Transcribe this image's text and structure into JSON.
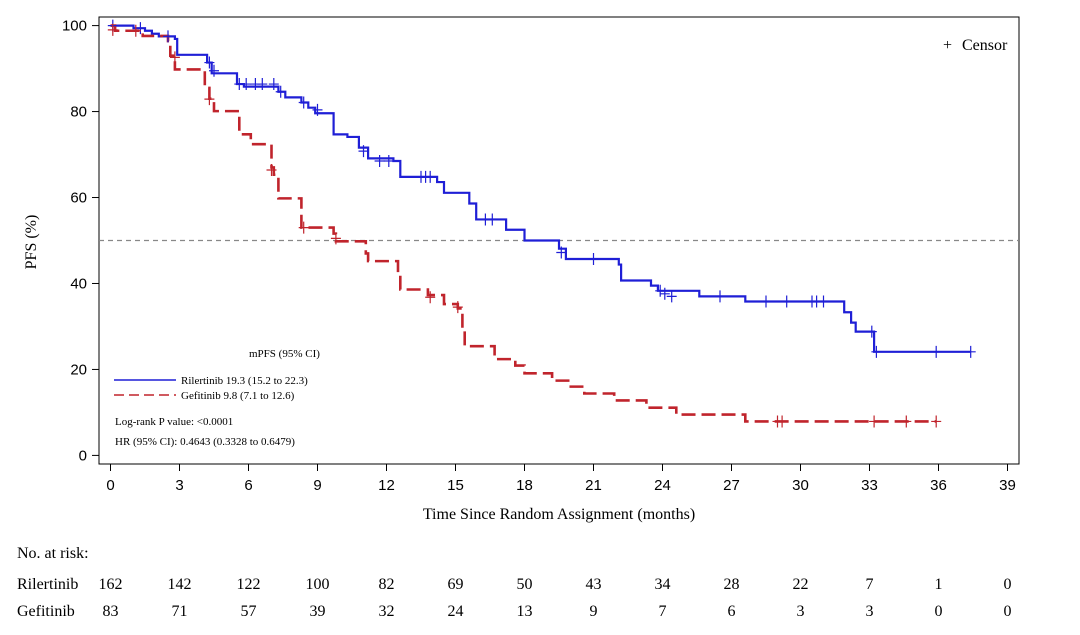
{
  "chart_data": {
    "type": "line",
    "subtype": "kaplan-meier",
    "xlabel": "Time Since Random Assignment (months)",
    "ylabel": "PFS (%)",
    "xlim": [
      -0.5,
      39.5
    ],
    "ylim": [
      -2,
      102
    ],
    "x_ticks": [
      0,
      3,
      6,
      9,
      12,
      15,
      18,
      21,
      24,
      27,
      30,
      33,
      36,
      39
    ],
    "y_ticks": [
      0,
      20,
      40,
      60,
      80,
      100
    ],
    "reference_line_y": 50,
    "grid": false,
    "legend": {
      "placement": "top-right",
      "censor_label": "Censor",
      "censor_symbol": "+"
    },
    "series": [
      {
        "name": "Rilertinib",
        "color": "#1f1fd6",
        "line_style": "solid",
        "steps": [
          [
            0,
            100
          ],
          [
            1.0,
            99.4
          ],
          [
            1.5,
            98.8
          ],
          [
            1.8,
            98.1
          ],
          [
            2.1,
            97.5
          ],
          [
            2.8,
            96.9
          ],
          [
            2.9,
            93.2
          ],
          [
            4.2,
            91.4
          ],
          [
            4.4,
            88.9
          ],
          [
            5.5,
            86.4
          ],
          [
            5.8,
            85.8
          ],
          [
            7.3,
            84.6
          ],
          [
            7.6,
            83.3
          ],
          [
            8.3,
            82.1
          ],
          [
            8.6,
            80.9
          ],
          [
            8.9,
            79.6
          ],
          [
            9.7,
            74.7
          ],
          [
            10.3,
            74.1
          ],
          [
            10.8,
            71.6
          ],
          [
            11.2,
            69.1
          ],
          [
            12.3,
            68.5
          ],
          [
            12.6,
            64.8
          ],
          [
            14.2,
            63.6
          ],
          [
            14.5,
            61.1
          ],
          [
            15.6,
            58.6
          ],
          [
            15.9,
            54.9
          ],
          [
            17.2,
            52.5
          ],
          [
            18.0,
            50.0
          ],
          [
            19.5,
            48.1
          ],
          [
            19.8,
            45.7
          ],
          [
            22.1,
            44.4
          ],
          [
            22.2,
            40.7
          ],
          [
            23.5,
            39.5
          ],
          [
            23.8,
            38.3
          ],
          [
            25.6,
            37.0
          ],
          [
            27.6,
            35.8
          ],
          [
            31.9,
            33.3
          ],
          [
            32.2,
            30.9
          ],
          [
            32.4,
            28.8
          ],
          [
            33.2,
            24.1
          ],
          [
            37.4,
            24.1
          ]
        ],
        "censors": [
          [
            0.1,
            100
          ],
          [
            1.3,
            99.4
          ],
          [
            2.5,
            97.5
          ],
          [
            4.3,
            91.4
          ],
          [
            4.5,
            89.5
          ],
          [
            5.6,
            86.4
          ],
          [
            5.9,
            86.4
          ],
          [
            6.3,
            86.4
          ],
          [
            6.6,
            86.4
          ],
          [
            7.1,
            86.4
          ],
          [
            7.4,
            84.6
          ],
          [
            8.4,
            82.1
          ],
          [
            9.0,
            80.4
          ],
          [
            11.0,
            70.8
          ],
          [
            11.7,
            68.5
          ],
          [
            12.1,
            68.5
          ],
          [
            13.5,
            64.8
          ],
          [
            13.7,
            64.8
          ],
          [
            13.9,
            64.8
          ],
          [
            16.3,
            54.9
          ],
          [
            16.6,
            54.9
          ],
          [
            19.6,
            47.2
          ],
          [
            21.0,
            45.7
          ],
          [
            23.9,
            38.3
          ],
          [
            24.1,
            37.6
          ],
          [
            24.4,
            37.0
          ],
          [
            26.5,
            37.0
          ],
          [
            28.5,
            35.8
          ],
          [
            29.4,
            35.8
          ],
          [
            30.5,
            35.8
          ],
          [
            30.7,
            35.8
          ],
          [
            31.0,
            35.8
          ],
          [
            33.1,
            28.8
          ],
          [
            33.3,
            24.1
          ],
          [
            35.9,
            24.1
          ],
          [
            37.4,
            24.1
          ]
        ],
        "median": "19.3 (15.2 to 22.3)"
      },
      {
        "name": "Gefitinib",
        "color": "#c0242c",
        "line_style": "dashed",
        "steps": [
          [
            0,
            100
          ],
          [
            0.2,
            98.8
          ],
          [
            1.4,
            97.6
          ],
          [
            2.5,
            96.4
          ],
          [
            2.6,
            93.0
          ],
          [
            2.8,
            89.8
          ],
          [
            4.1,
            85.5
          ],
          [
            4.3,
            83.0
          ],
          [
            4.5,
            80.1
          ],
          [
            5.6,
            74.7
          ],
          [
            6.1,
            72.4
          ],
          [
            7.0,
            67.0
          ],
          [
            7.1,
            65.3
          ],
          [
            7.3,
            59.8
          ],
          [
            8.3,
            53.0
          ],
          [
            9.7,
            51.6
          ],
          [
            9.8,
            49.8
          ],
          [
            11.1,
            47.0
          ],
          [
            11.2,
            45.2
          ],
          [
            12.5,
            42.0
          ],
          [
            12.6,
            38.6
          ],
          [
            13.8,
            37.3
          ],
          [
            14.5,
            35.2
          ],
          [
            15.1,
            34.2
          ],
          [
            15.3,
            29.0
          ],
          [
            15.4,
            25.4
          ],
          [
            16.7,
            22.4
          ],
          [
            17.6,
            20.9
          ],
          [
            18.0,
            19.1
          ],
          [
            19.2,
            17.4
          ],
          [
            19.9,
            16.0
          ],
          [
            20.6,
            14.4
          ],
          [
            21.9,
            12.8
          ],
          [
            23.3,
            11.1
          ],
          [
            24.6,
            9.5
          ],
          [
            27.6,
            7.9
          ],
          [
            35.9,
            7.9
          ]
        ],
        "censors": [
          [
            0.1,
            99.0
          ],
          [
            1.1,
            98.8
          ],
          [
            2.8,
            92.6
          ],
          [
            4.3,
            82.9
          ],
          [
            7.0,
            66.4
          ],
          [
            8.4,
            53.0
          ],
          [
            9.8,
            50.5
          ],
          [
            13.9,
            36.8
          ],
          [
            15.1,
            34.5
          ],
          [
            29.0,
            7.9
          ],
          [
            29.2,
            7.9
          ],
          [
            33.2,
            7.9
          ],
          [
            34.6,
            7.9
          ],
          [
            35.9,
            7.9
          ]
        ],
        "median": "9.8 (7.1 to 12.6)"
      }
    ],
    "annotations": {
      "mpfs_header": "mPFS (95% CI)",
      "legend_rilertinib": "Rilertinib 19.3 (15.2 to 22.3)",
      "legend_gefitinib": "Gefitinib 9.8 (7.1 to 12.6)",
      "logrank": "Log-rank P value: <0.0001",
      "hr": "HR (95% CI): 0.4643 (0.3328 to 0.6479)"
    },
    "risk_table": {
      "title": "No. at risk:",
      "times": [
        0,
        3,
        6,
        9,
        12,
        15,
        18,
        21,
        24,
        27,
        30,
        33,
        36,
        39
      ],
      "rows": [
        {
          "name": "Rilertinib",
          "values": [
            162,
            142,
            122,
            100,
            82,
            69,
            50,
            43,
            34,
            28,
            22,
            7,
            1,
            0
          ]
        },
        {
          "name": "Gefitinib",
          "values": [
            83,
            71,
            57,
            39,
            32,
            24,
            13,
            9,
            7,
            6,
            3,
            3,
            0,
            0
          ]
        }
      ]
    }
  }
}
